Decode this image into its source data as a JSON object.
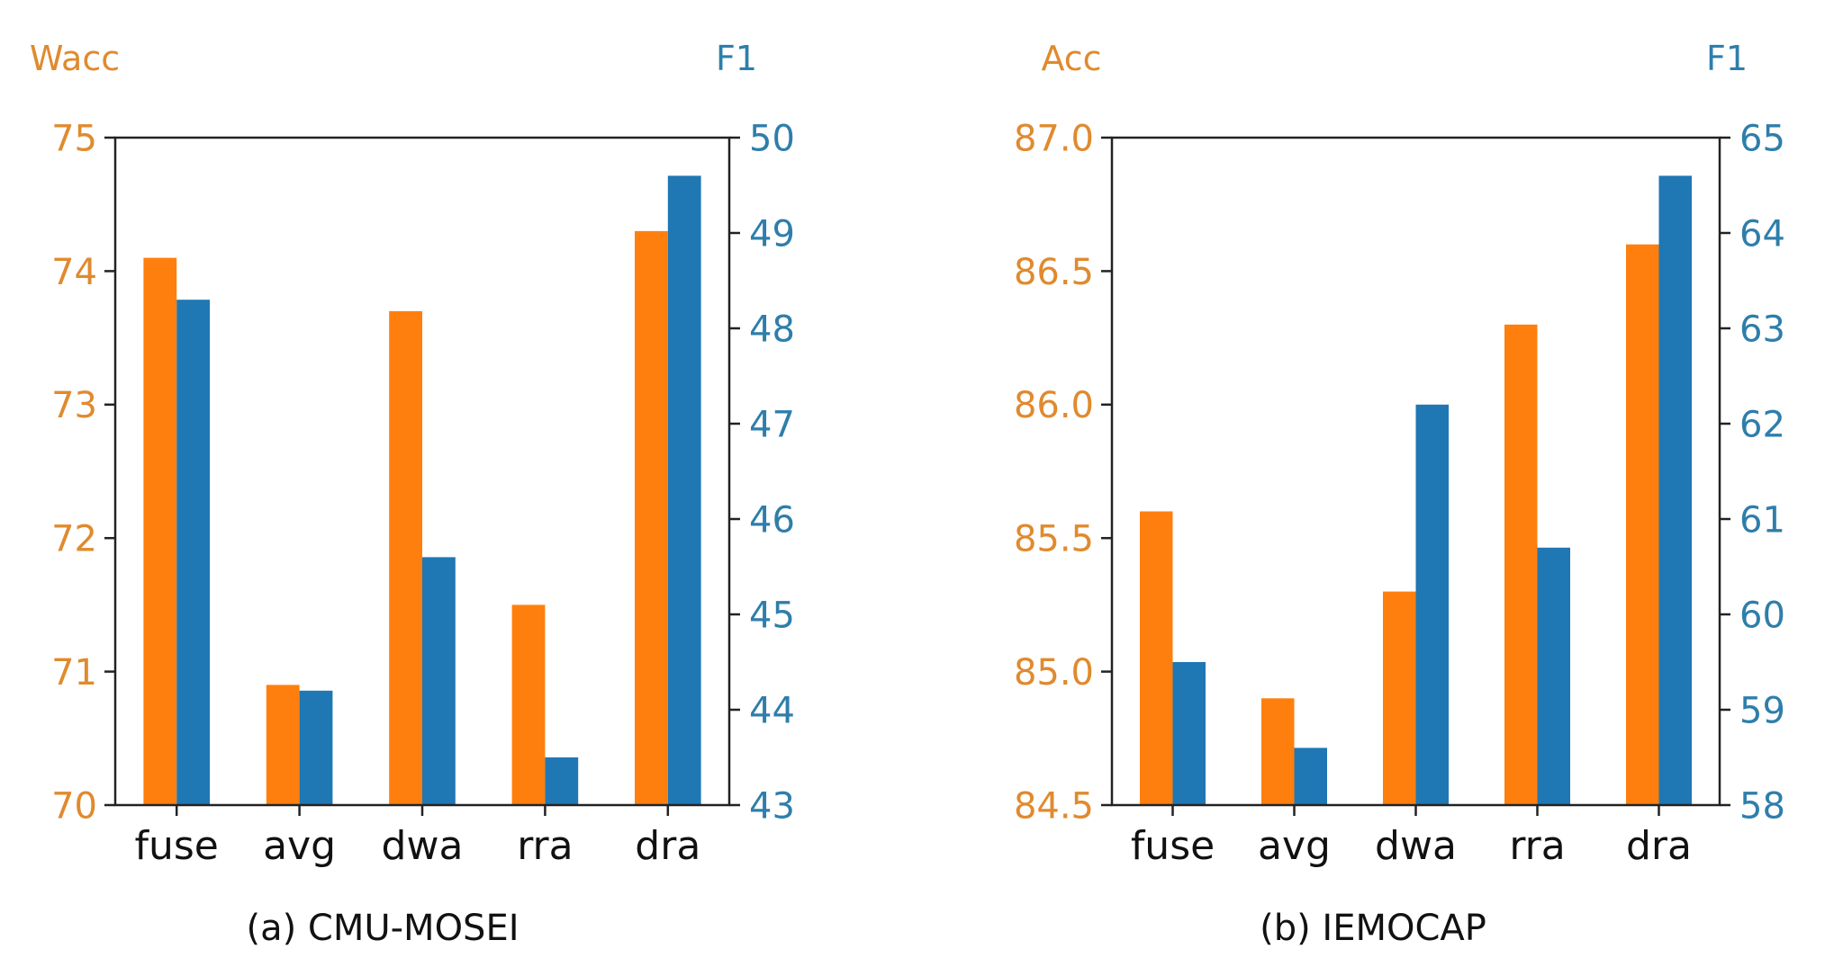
{
  "colors": {
    "left_series": "#ff7f0e",
    "right_series": "#1f77b4",
    "left_text": "#e08a2e",
    "right_text": "#2e7eab",
    "axis": "#222222",
    "text": "#111111"
  },
  "chart_data": [
    {
      "type": "bar",
      "caption": "(a) CMU-MOSEI",
      "categories": [
        "fuse",
        "avg",
        "dwa",
        "rra",
        "dra"
      ],
      "left_axis": {
        "label": "Wacc",
        "ylim": [
          70,
          75
        ],
        "ticks": [
          70,
          71,
          72,
          73,
          74,
          75
        ],
        "tick_labels": [
          "70",
          "71",
          "72",
          "73",
          "74",
          "75"
        ]
      },
      "right_axis": {
        "label": "F1",
        "ylim": [
          43,
          50
        ],
        "ticks": [
          43,
          44,
          45,
          46,
          47,
          48,
          49,
          50
        ],
        "tick_labels": [
          "43",
          "44",
          "45",
          "46",
          "47",
          "48",
          "49",
          "50"
        ]
      },
      "series": [
        {
          "name": "Wacc",
          "axis": "left",
          "color": "#ff7f0e",
          "values": [
            74.1,
            70.9,
            73.7,
            71.5,
            74.3
          ]
        },
        {
          "name": "F1",
          "axis": "right",
          "color": "#1f77b4",
          "values": [
            48.3,
            44.2,
            45.6,
            43.5,
            49.6
          ]
        }
      ]
    },
    {
      "type": "bar",
      "caption": "(b) IEMOCAP",
      "categories": [
        "fuse",
        "avg",
        "dwa",
        "rra",
        "dra"
      ],
      "left_axis": {
        "label": "Acc",
        "ylim": [
          84.5,
          87.0
        ],
        "ticks": [
          84.5,
          85.0,
          85.5,
          86.0,
          86.5,
          87.0
        ],
        "tick_labels": [
          "84.5",
          "85.0",
          "85.5",
          "86.0",
          "86.5",
          "87.0"
        ]
      },
      "right_axis": {
        "label": "F1",
        "ylim": [
          58,
          65
        ],
        "ticks": [
          58,
          59,
          60,
          61,
          62,
          63,
          64,
          65
        ],
        "tick_labels": [
          "58",
          "59",
          "60",
          "61",
          "62",
          "63",
          "64",
          "65"
        ]
      },
      "series": [
        {
          "name": "Acc",
          "axis": "left",
          "color": "#ff7f0e",
          "values": [
            85.6,
            84.9,
            85.3,
            86.3,
            86.6
          ]
        },
        {
          "name": "F1",
          "axis": "right",
          "color": "#1f77b4",
          "values": [
            59.5,
            58.6,
            62.2,
            60.7,
            64.6
          ]
        }
      ]
    }
  ]
}
